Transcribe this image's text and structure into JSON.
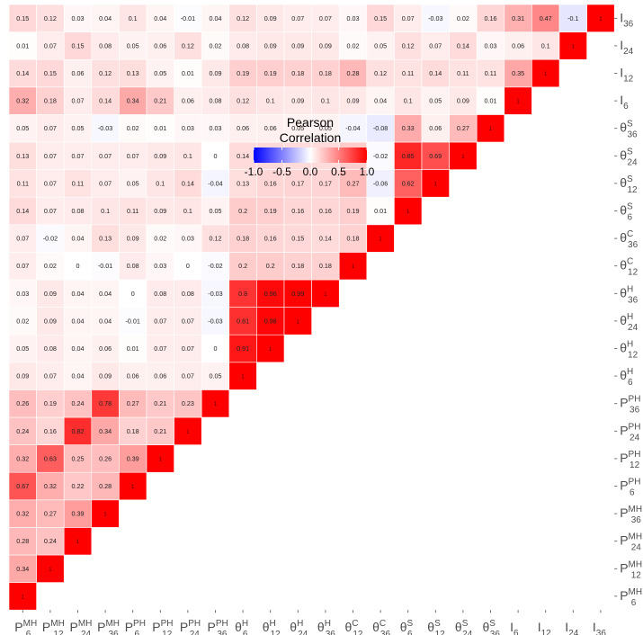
{
  "chart_data": {
    "type": "heatmap",
    "variables": [
      {
        "base": "P",
        "sup": "MH",
        "sub": "6"
      },
      {
        "base": "P",
        "sup": "MH",
        "sub": "12"
      },
      {
        "base": "P",
        "sup": "MH",
        "sub": "24"
      },
      {
        "base": "P",
        "sup": "MH",
        "sub": "36"
      },
      {
        "base": "P",
        "sup": "PH",
        "sub": "6"
      },
      {
        "base": "P",
        "sup": "PH",
        "sub": "12"
      },
      {
        "base": "P",
        "sup": "PH",
        "sub": "24"
      },
      {
        "base": "P",
        "sup": "PH",
        "sub": "36"
      },
      {
        "base": "θ",
        "sup": "H",
        "sub": "6"
      },
      {
        "base": "θ",
        "sup": "H",
        "sub": "12"
      },
      {
        "base": "θ",
        "sup": "H",
        "sub": "24"
      },
      {
        "base": "θ",
        "sup": "H",
        "sub": "36"
      },
      {
        "base": "θ",
        "sup": "C",
        "sub": "12"
      },
      {
        "base": "θ",
        "sup": "C",
        "sub": "36"
      },
      {
        "base": "θ",
        "sup": "S",
        "sub": "6"
      },
      {
        "base": "θ",
        "sup": "S",
        "sub": "12"
      },
      {
        "base": "θ",
        "sup": "S",
        "sub": "24"
      },
      {
        "base": "θ",
        "sup": "S",
        "sub": "36"
      },
      {
        "base": "I",
        "sup": "",
        "sub": "6"
      },
      {
        "base": "I",
        "sup": "",
        "sub": "12"
      },
      {
        "base": "I",
        "sup": "",
        "sub": "24"
      },
      {
        "base": "I",
        "sup": "",
        "sub": "36"
      }
    ],
    "columns": [
      [
        1,
        0.34,
        0.28,
        0.32,
        0.67,
        0.32,
        0.24,
        0.26,
        0.09,
        0.05,
        0.02,
        0.03,
        0.07,
        0.07,
        0.14,
        0.11,
        0.13,
        0.05,
        0.32,
        0.14,
        0.01,
        0.15
      ],
      [
        1,
        0.24,
        0.27,
        0.32,
        0.63,
        0.16,
        0.19,
        0.07,
        0.08,
        0.09,
        0.09,
        0.02,
        -0.02,
        0.07,
        0.07,
        0.07,
        0.07,
        0.18,
        0.15,
        0.07,
        0.12
      ],
      [
        1,
        0.39,
        0.22,
        0.25,
        0.82,
        0.24,
        0.04,
        0.04,
        0.04,
        0.04,
        0,
        0.04,
        0.08,
        0.11,
        0.07,
        0.05,
        0.07,
        0.06,
        0.15,
        0.03
      ],
      [
        1,
        0.28,
        0.26,
        0.34,
        0.78,
        0.09,
        0.06,
        0.04,
        0.04,
        -0.01,
        0.13,
        0.1,
        0.07,
        0.07,
        -0.03,
        0.14,
        0.12,
        0.08,
        0.04
      ],
      [
        1,
        0.39,
        0.18,
        0.27,
        0.06,
        0.01,
        -0.01,
        0,
        0.08,
        0.09,
        0.11,
        0.05,
        0.07,
        0.02,
        0.34,
        0.13,
        0.05,
        0.1
      ],
      [
        1,
        0.21,
        0.21,
        0.06,
        0.07,
        0.07,
        0.08,
        0.03,
        0.02,
        0.09,
        0.1,
        0.09,
        0.01,
        0.21,
        0.05,
        0.06,
        0.04
      ],
      [
        1,
        0.23,
        0.07,
        0.07,
        0.07,
        0.08,
        0,
        0.03,
        0.1,
        0.14,
        0.1,
        0.03,
        0.06,
        0.01,
        0.12,
        -0.01
      ],
      [
        1,
        0.05,
        0,
        -0.03,
        -0.03,
        -0.02,
        0.12,
        0.05,
        -0.04,
        0,
        0.03,
        0.08,
        0.09,
        0.02,
        0.04
      ],
      [
        1,
        0.91,
        0.81,
        0.8,
        0.2,
        0.18,
        0.2,
        0.13,
        0.14,
        0.06,
        0.12,
        0.19,
        0.08,
        0.12
      ],
      [
        1,
        0.98,
        0.96,
        0.2,
        0.16,
        0.19,
        0.16,
        0.15,
        0.06,
        0.1,
        0.19,
        0.09,
        0.09
      ],
      [
        1,
        0.99,
        0.18,
        0.15,
        0.16,
        0.17,
        0.14,
        0.05,
        0.09,
        0.18,
        0.09,
        0.07
      ],
      [
        1,
        0.18,
        0.14,
        0.16,
        0.17,
        0.14,
        0.05,
        0.1,
        0.18,
        0.09,
        0.07
      ],
      [
        1,
        0.18,
        0.19,
        0.27,
        0.2,
        -0.04,
        0.09,
        0.28,
        0.02,
        0.03
      ],
      [
        1,
        0.01,
        -0.06,
        -0.02,
        -0.08,
        0.04,
        0.12,
        0.05,
        0.15
      ],
      [
        1,
        0.62,
        0.85,
        0.33,
        0.1,
        0.11,
        0.12,
        0.07
      ],
      [
        1,
        0.69,
        0.06,
        0.05,
        0.14,
        0.07,
        -0.03
      ],
      [
        1,
        0.27,
        0.09,
        0.11,
        0.14,
        0.02
      ],
      [
        1,
        0.01,
        0.11,
        0.03,
        0.16
      ],
      [
        1,
        0.35,
        0.06,
        0.31
      ],
      [
        1,
        0.1,
        0.47
      ],
      [
        1,
        -0.1
      ],
      [
        1
      ]
    ],
    "legend": {
      "title_line1": "Pearson",
      "title_line2": "Correlation",
      "ticks": [
        "-1.0",
        "-0.5",
        "0.0",
        "0.5",
        "1.0"
      ],
      "range": [
        -1,
        1
      ],
      "placement": "upper-middle"
    },
    "colors": {
      "low": "#0000ff",
      "mid": "#ffffff",
      "high": "#ff0000",
      "label": "#4d4d4d"
    }
  }
}
